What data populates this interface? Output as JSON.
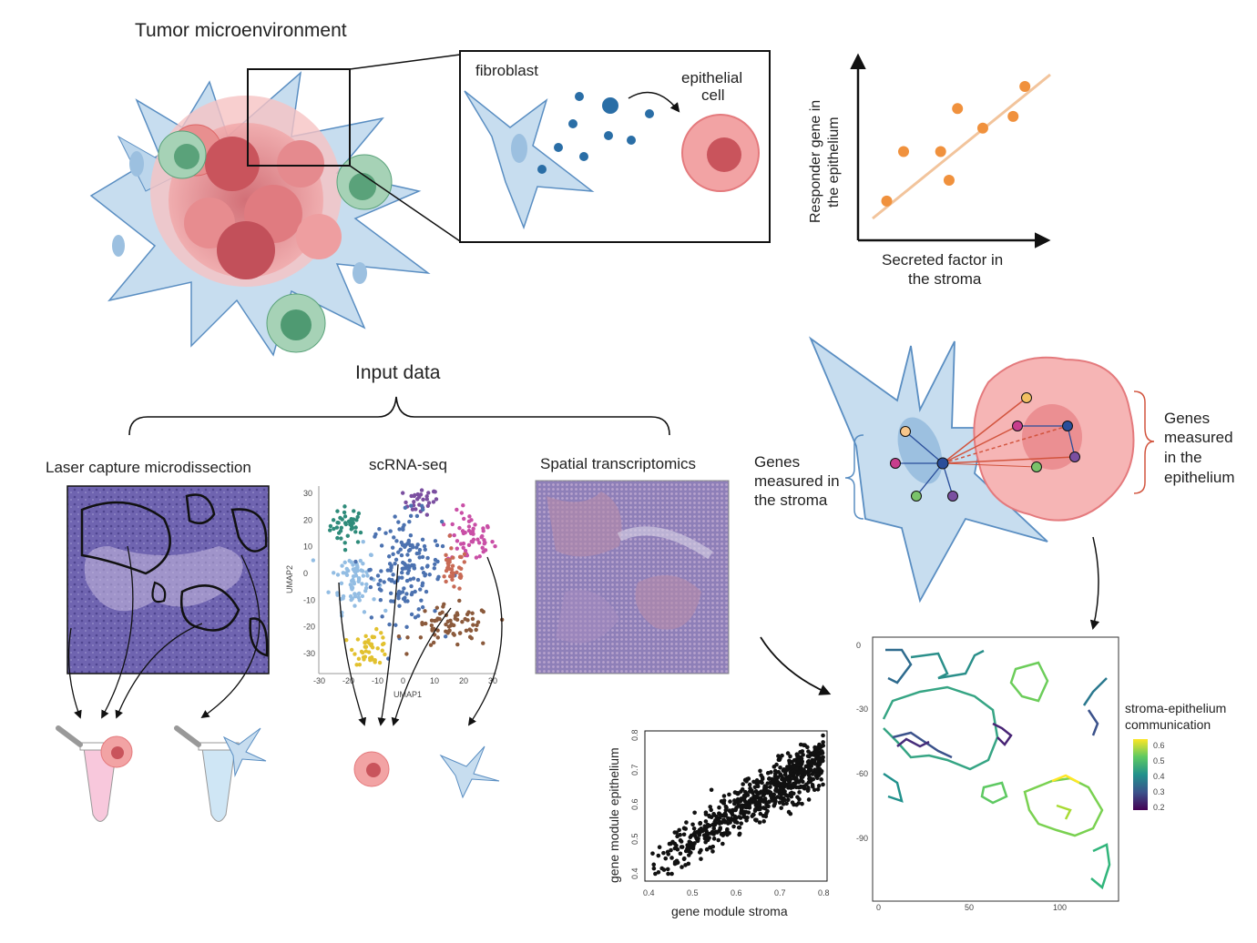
{
  "titles": {
    "tumor_microenvironment": "Tumor microenvironment",
    "input_data": "Input data"
  },
  "inset": {
    "fibroblast": "fibroblast",
    "epithelial_line1": "epithelial",
    "epithelial_line2": "cell"
  },
  "response_plot": {
    "ylabel_line1": "Responder gene in",
    "ylabel_line2": "the epithelium",
    "xlabel_line1": "Secreted factor in",
    "xlabel_line2": "the stroma",
    "points": [
      [
        0.1,
        0.12
      ],
      [
        0.2,
        0.5
      ],
      [
        0.42,
        0.5
      ],
      [
        0.47,
        0.28
      ],
      [
        0.52,
        0.83
      ],
      [
        0.67,
        0.68
      ],
      [
        0.85,
        0.77
      ],
      [
        0.92,
        1.0
      ]
    ],
    "point_color": "#f0913d",
    "line_color": "#f2c49c"
  },
  "network": {
    "stroma_line1": "Genes",
    "stroma_line2": "measured in",
    "stroma_line3": "the stroma",
    "epi_line1": "Genes",
    "epi_line2": "measured",
    "epi_line3": "in the",
    "epi_line4": "epithelium"
  },
  "methods": {
    "lcm": "Laser capture microdissection",
    "scrna": "scRNA-seq",
    "spatial": "Spatial transcriptomics"
  },
  "umap": {
    "xlabel": "UMAP1",
    "ylabel": "UMAP2",
    "x_ticks": [
      "-30",
      "-20",
      "-10",
      "0",
      "10",
      "20",
      "30"
    ],
    "y_ticks": [
      "30",
      "20",
      "10",
      "0",
      "-10",
      "-20",
      "-30"
    ],
    "clusters": [
      {
        "color": "#2e8b7a",
        "cx": -20,
        "cy": 18,
        "sx": 3,
        "sy": 3.5,
        "n": 40
      },
      {
        "color": "#7b4fa0",
        "cx": 5,
        "cy": 27,
        "sx": 3,
        "sy": 2.5,
        "n": 30
      },
      {
        "color": "#c94fa6",
        "cx": 22,
        "cy": 13,
        "sx": 4,
        "sy": 5,
        "n": 55
      },
      {
        "color": "#93bde3",
        "cx": -18,
        "cy": -2,
        "sx": 4,
        "sy": 6,
        "n": 75
      },
      {
        "color": "#4c72b0",
        "cx": 0,
        "cy": 2,
        "sx": 6,
        "sy": 10,
        "n": 160
      },
      {
        "color": "#c86a55",
        "cx": 16,
        "cy": 1,
        "sx": 2.5,
        "sy": 4,
        "n": 35
      },
      {
        "color": "#8b5a3c",
        "cx": 16,
        "cy": -20,
        "sx": 7,
        "sy": 4,
        "n": 70
      },
      {
        "color": "#e2c12f",
        "cx": -12,
        "cy": -28,
        "sx": 3,
        "sy": 3,
        "n": 45
      }
    ]
  },
  "module_scatter": {
    "xlabel": "gene module stroma",
    "ylabel": "gene module epithelium",
    "x_ticks": [
      "0.4",
      "0.5",
      "0.6",
      "0.7",
      "0.8"
    ],
    "y_ticks": [
      "0.4",
      "0.5",
      "0.6",
      "0.7",
      "0.8"
    ],
    "xlim": [
      0.4,
      0.8
    ],
    "ylim": [
      0.4,
      0.8
    ],
    "n_points": 700
  },
  "comm_map": {
    "legend_line1": "stroma-epithelium",
    "legend_line2": "communication",
    "legend_ticks": [
      "0.6",
      "0.5",
      "0.4",
      "0.3",
      "0.2"
    ],
    "x_ticks": [
      "0",
      "50",
      "100"
    ],
    "y_ticks": [
      "0",
      "-30",
      "-60",
      "-90"
    ]
  }
}
